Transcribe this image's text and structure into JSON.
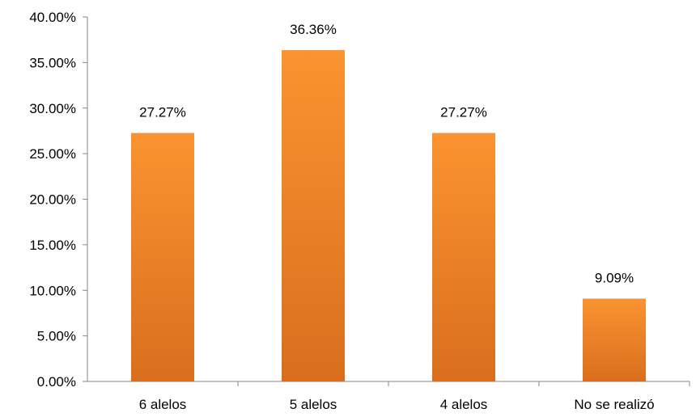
{
  "chart_data": {
    "type": "bar",
    "categories": [
      "6 alelos",
      "5 alelos",
      "4 alelos",
      "No se realizó"
    ],
    "values": [
      27.27,
      36.36,
      27.27,
      9.09
    ],
    "data_labels": [
      "27.27%",
      "36.36%",
      "27.27%",
      "9.09%"
    ],
    "ylim": [
      0,
      40
    ],
    "y_ticks": [
      0,
      5,
      10,
      15,
      20,
      25,
      30,
      35,
      40
    ],
    "y_tick_labels": [
      "0.00%",
      "5.00%",
      "10.00%",
      "15.00%",
      "20.00%",
      "25.00%",
      "30.00%",
      "35.00%",
      "40.00%"
    ],
    "grid": false,
    "legend": "none",
    "colors": {
      "bar_top": "#FB9330",
      "bar_bottom": "#D96E1E",
      "axis": "#868686"
    }
  }
}
